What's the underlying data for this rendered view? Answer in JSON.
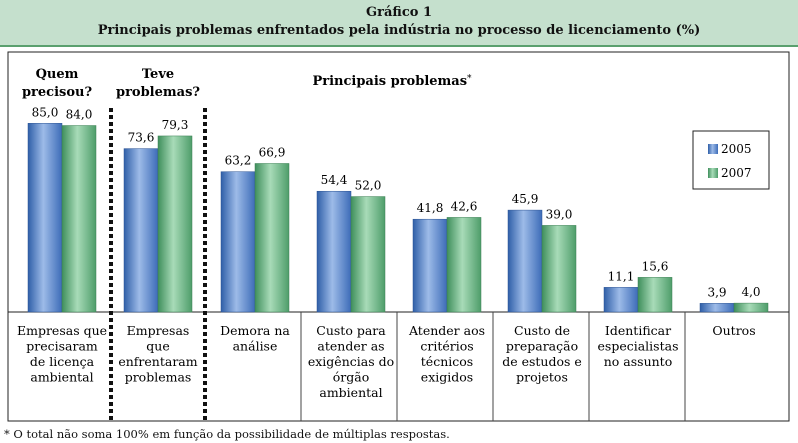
{
  "header": {
    "title": "Gráfico 1",
    "subtitle": "Principais problemas enfrentados pela indústria no processo de licenciamento (%)"
  },
  "group_headers": {
    "left": [
      "Quem",
      "precisou?"
    ],
    "middle": [
      "Teve",
      "problemas?"
    ],
    "right": "Principais problemas",
    "right_mark": "*"
  },
  "colors": {
    "series_2005": "#4e7fc8",
    "series_2007": "#5fb07d",
    "header_bg": "#c5e0cd",
    "header_border": "#5aa06e"
  },
  "chart_data": {
    "type": "bar",
    "title": "Principais problemas enfrentados pela indústria no processo de licenciamento (%)",
    "categories": [
      [
        "Empresas que",
        "precisaram",
        "de licença",
        "ambiental"
      ],
      [
        "Empresas",
        "que",
        "enfrentaram",
        "problemas"
      ],
      [
        "Demora na",
        "análise"
      ],
      [
        "Custo para",
        "atender as",
        "exigências do",
        "órgão",
        "ambiental"
      ],
      [
        "Atender aos",
        "critérios",
        "técnicos",
        "exigidos"
      ],
      [
        "Custo de",
        "preparação",
        "de estudos e",
        "projetos"
      ],
      [
        "Identificar",
        "especialistas",
        "no assunto"
      ],
      [
        "Outros"
      ]
    ],
    "series": [
      {
        "name": "2005",
        "values": [
          85.0,
          73.6,
          63.2,
          54.4,
          41.8,
          45.9,
          11.1,
          3.9
        ],
        "labels": [
          "85,0",
          "73,6",
          "63,2",
          "54,4",
          "41,8",
          "45,9",
          "11,1",
          "3,9"
        ]
      },
      {
        "name": "2007",
        "values": [
          84.0,
          79.3,
          66.9,
          52.0,
          42.6,
          39.0,
          15.6,
          4.0
        ],
        "labels": [
          "84,0",
          "79,3",
          "66,9",
          "52,0",
          "42,6",
          "39,0",
          "15,6",
          "4,0"
        ]
      }
    ],
    "ylim": [
      0,
      100
    ],
    "grid": false,
    "legend": "top-right"
  },
  "footnote": "* O total não soma 100% em função da possibilidade de múltiplas respostas."
}
